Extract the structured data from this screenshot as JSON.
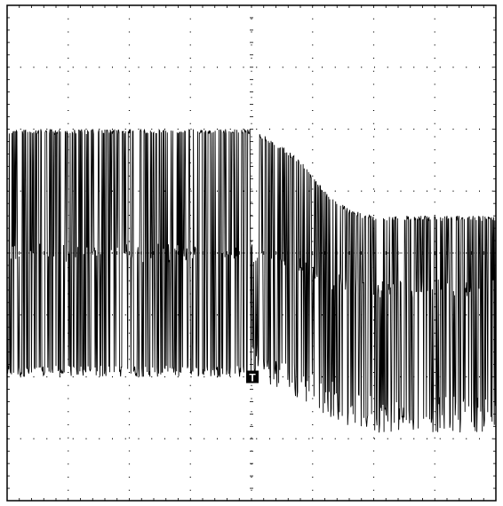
{
  "chart_data": {
    "type": "line",
    "title": "",
    "xlabel": "",
    "ylabel": "",
    "grid": true,
    "divisions": {
      "x": 8,
      "y": 8
    },
    "xlim": [
      -4,
      4
    ],
    "ylim": [
      -4,
      4
    ],
    "trigger_marker": {
      "label": "T",
      "x": 0,
      "level": -2.0
    },
    "series": [
      {
        "color": "#000000",
        "envelope": [
          {
            "x": -4.0,
            "upper": 2.0,
            "lower": -2.0
          },
          {
            "x": 0.0,
            "upper": 2.0,
            "lower": -2.0
          },
          {
            "x": 0.4,
            "upper": 1.8,
            "lower": -2.2
          },
          {
            "x": 0.8,
            "upper": 1.5,
            "lower": -2.4
          },
          {
            "x": 1.2,
            "upper": 1.0,
            "lower": -2.6
          },
          {
            "x": 1.6,
            "upper": 0.7,
            "lower": -2.8
          },
          {
            "x": 2.0,
            "upper": 0.6,
            "lower": -2.9
          },
          {
            "x": 4.0,
            "upper": 0.6,
            "lower": -2.9
          }
        ],
        "baseline": [
          {
            "x": -4.0,
            "y": 0.0
          },
          {
            "x": 4.0,
            "y": 0.0
          }
        ]
      }
    ]
  }
}
